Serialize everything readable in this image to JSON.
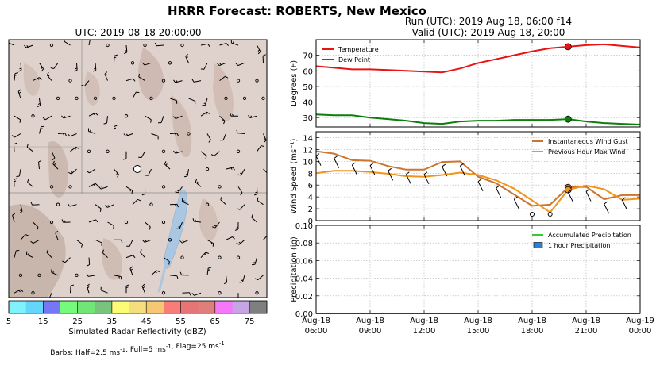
{
  "figure": {
    "suptitle": "HRRR Forecast: ROBERTS, New Mexico",
    "run_line": "Run (UTC): 2019 Aug 18, 06:00 f14",
    "valid_line": "Valid (UTC): 2019 Aug 18, 20:00"
  },
  "map": {
    "title": "UTC: 2019-08-18 20:00:00",
    "colorbar_label": "Simulated Radar Reflectivity (dBZ)",
    "colorbar_ticks": [
      "5",
      "15",
      "25",
      "35",
      "45",
      "55",
      "65",
      "75"
    ],
    "colorbar_colors": [
      "#7ff2fb",
      "#63d7fa",
      "#7676f6",
      "#74fb79",
      "#71e575",
      "#79c47c",
      "#fcfb76",
      "#f5df7c",
      "#f7c872",
      "#f87c78",
      "#e87576",
      "#e07e7c",
      "#f777fa",
      "#c5a5e3",
      "#7f7f7f"
    ],
    "barbs_note_html": "Barbs: Half=2.5 ms<sup>-1</sup>, Full=5 ms<sup>-1</sup>, Flag=25 ms<sup>-1</sup>"
  },
  "chart_data": [
    {
      "type": "line",
      "ylabel": "Degrees (F)",
      "ylim": [
        24,
        80
      ],
      "yticks": [
        30,
        40,
        50,
        60,
        70
      ],
      "x_hours": [
        6,
        9,
        12,
        15,
        18,
        21,
        24
      ],
      "grid": true,
      "legend_position": "top-left",
      "series": [
        {
          "name": "Temperature",
          "color": "#e81313",
          "x": [
            6,
            7,
            8,
            9,
            10,
            11,
            12,
            13,
            14,
            15,
            16,
            17,
            18,
            19,
            20,
            21,
            22,
            23,
            24
          ],
          "y": [
            63,
            62,
            61,
            61,
            60.5,
            60,
            59.5,
            59,
            61.5,
            65,
            67.5,
            70,
            72.5,
            74.5,
            75.5,
            76.5,
            77,
            76,
            75
          ]
        },
        {
          "name": "Dew Point",
          "color": "#0a7f0a",
          "x": [
            6,
            7,
            8,
            9,
            10,
            11,
            12,
            13,
            14,
            15,
            16,
            17,
            18,
            19,
            20,
            21,
            22,
            23,
            24
          ],
          "y": [
            32,
            31.5,
            31.5,
            30,
            29,
            28,
            26.5,
            26,
            27.5,
            28,
            28,
            28.5,
            28.5,
            28.5,
            29,
            27.5,
            26.5,
            26,
            25.5
          ]
        }
      ],
      "highlight_x": 20
    },
    {
      "type": "line",
      "ylabel": "Wind Speed (ms⁻¹)",
      "ylim": [
        0,
        15
      ],
      "yticks": [
        0,
        2,
        4,
        6,
        8,
        10,
        12,
        14
      ],
      "x_hours": [
        6,
        9,
        12,
        15,
        18,
        21,
        24
      ],
      "grid": true,
      "legend_position": "top-right",
      "series": [
        {
          "name": "Instantaneous Wind Gust",
          "color": "#cc7530",
          "x": [
            6,
            7,
            8,
            9,
            10,
            11,
            12,
            13,
            14,
            15,
            16,
            17,
            18,
            19,
            20,
            21,
            22,
            23,
            24
          ],
          "y": [
            11.7,
            11.3,
            10.2,
            10.1,
            9.2,
            8.6,
            8.6,
            9.9,
            10,
            7.4,
            6.3,
            4.4,
            2.5,
            2.7,
            5.6,
            5.7,
            3.6,
            4.3,
            4.3
          ]
        },
        {
          "name": "Previous Hour Max Wind",
          "color": "#f0951c",
          "x": [
            6,
            7,
            8,
            9,
            10,
            11,
            12,
            13,
            14,
            15,
            16,
            17,
            18,
            19,
            20,
            21,
            22,
            23,
            24
          ],
          "y": [
            8,
            8.4,
            8.4,
            8.2,
            7.9,
            7.5,
            7.4,
            7.7,
            8.1,
            7.7,
            6.8,
            5.4,
            3.4,
            1.4,
            5.2,
            5.9,
            5.3,
            3.5,
            3.7
          ]
        }
      ],
      "highlight_x": 20,
      "calm_markers_x": [
        18,
        19
      ]
    },
    {
      "type": "area",
      "ylabel": "Precipitation (in)",
      "ylim": [
        0,
        0.1
      ],
      "yticks": [
        "0.00",
        "0.02",
        "0.04",
        "0.06",
        "0.08",
        "0.10"
      ],
      "x_hours": [
        6,
        9,
        12,
        15,
        18,
        21,
        24
      ],
      "xticks_top": [
        "Aug-18",
        "Aug-18",
        "Aug-18",
        "Aug-18",
        "Aug-18",
        "Aug-18",
        "Aug-19"
      ],
      "xticks_bottom": [
        "06:00",
        "09:00",
        "12:00",
        "15:00",
        "18:00",
        "21:00",
        "00:00"
      ],
      "grid": true,
      "legend_position": "top-right",
      "series": [
        {
          "name": "Accumulated Precipitation",
          "color": "#33cc33",
          "x": [
            6,
            24
          ],
          "y": [
            0,
            0
          ]
        },
        {
          "name": "1 hour Precipitation",
          "color": "#2a7fde",
          "kind": "bar",
          "x": [
            6,
            24
          ],
          "y": [
            0,
            0
          ]
        }
      ],
      "highlight_x": 20
    }
  ]
}
